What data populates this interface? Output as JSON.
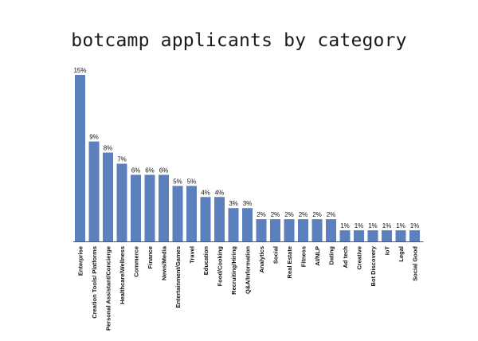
{
  "chart_data": {
    "type": "bar",
    "title": "botcamp applicants by category",
    "xlabel": "",
    "ylabel": "",
    "ylim": [
      0,
      15
    ],
    "grid": false,
    "bar_color": "#5b80bd",
    "categories": [
      "Enterprise",
      "Creation Tools/ Platforms",
      "Personal Assistant/Concierge",
      "Healthcare/Wellness",
      "Commerce",
      "Finance",
      "News/Media",
      "Entertainment/Games",
      "Travel",
      "Education",
      "Food/Cooking",
      "Recruiting/Hiring",
      "Q&A/Information",
      "Analytics",
      "Social",
      "Real Estate",
      "Fitness",
      "AI/NLP",
      "Dating",
      "Ad tech",
      "Creative",
      "Bot Discovery",
      "IoT",
      "Legal",
      "Social Good"
    ],
    "values": [
      15,
      9,
      8,
      7,
      6,
      6,
      6,
      5,
      5,
      4,
      4,
      3,
      3,
      2,
      2,
      2,
      2,
      2,
      2,
      1,
      1,
      1,
      1,
      1,
      1
    ],
    "data_labels": [
      "15%",
      "9%",
      "8%",
      "7%",
      "6%",
      "6%",
      "6%",
      "5%",
      "5%",
      "4%",
      "4%",
      "3%",
      "3%",
      "2%",
      "2%",
      "2%",
      "2%",
      "2%",
      "2%",
      "1%",
      "1%",
      "1%",
      "1%",
      "1%",
      "1%"
    ]
  }
}
